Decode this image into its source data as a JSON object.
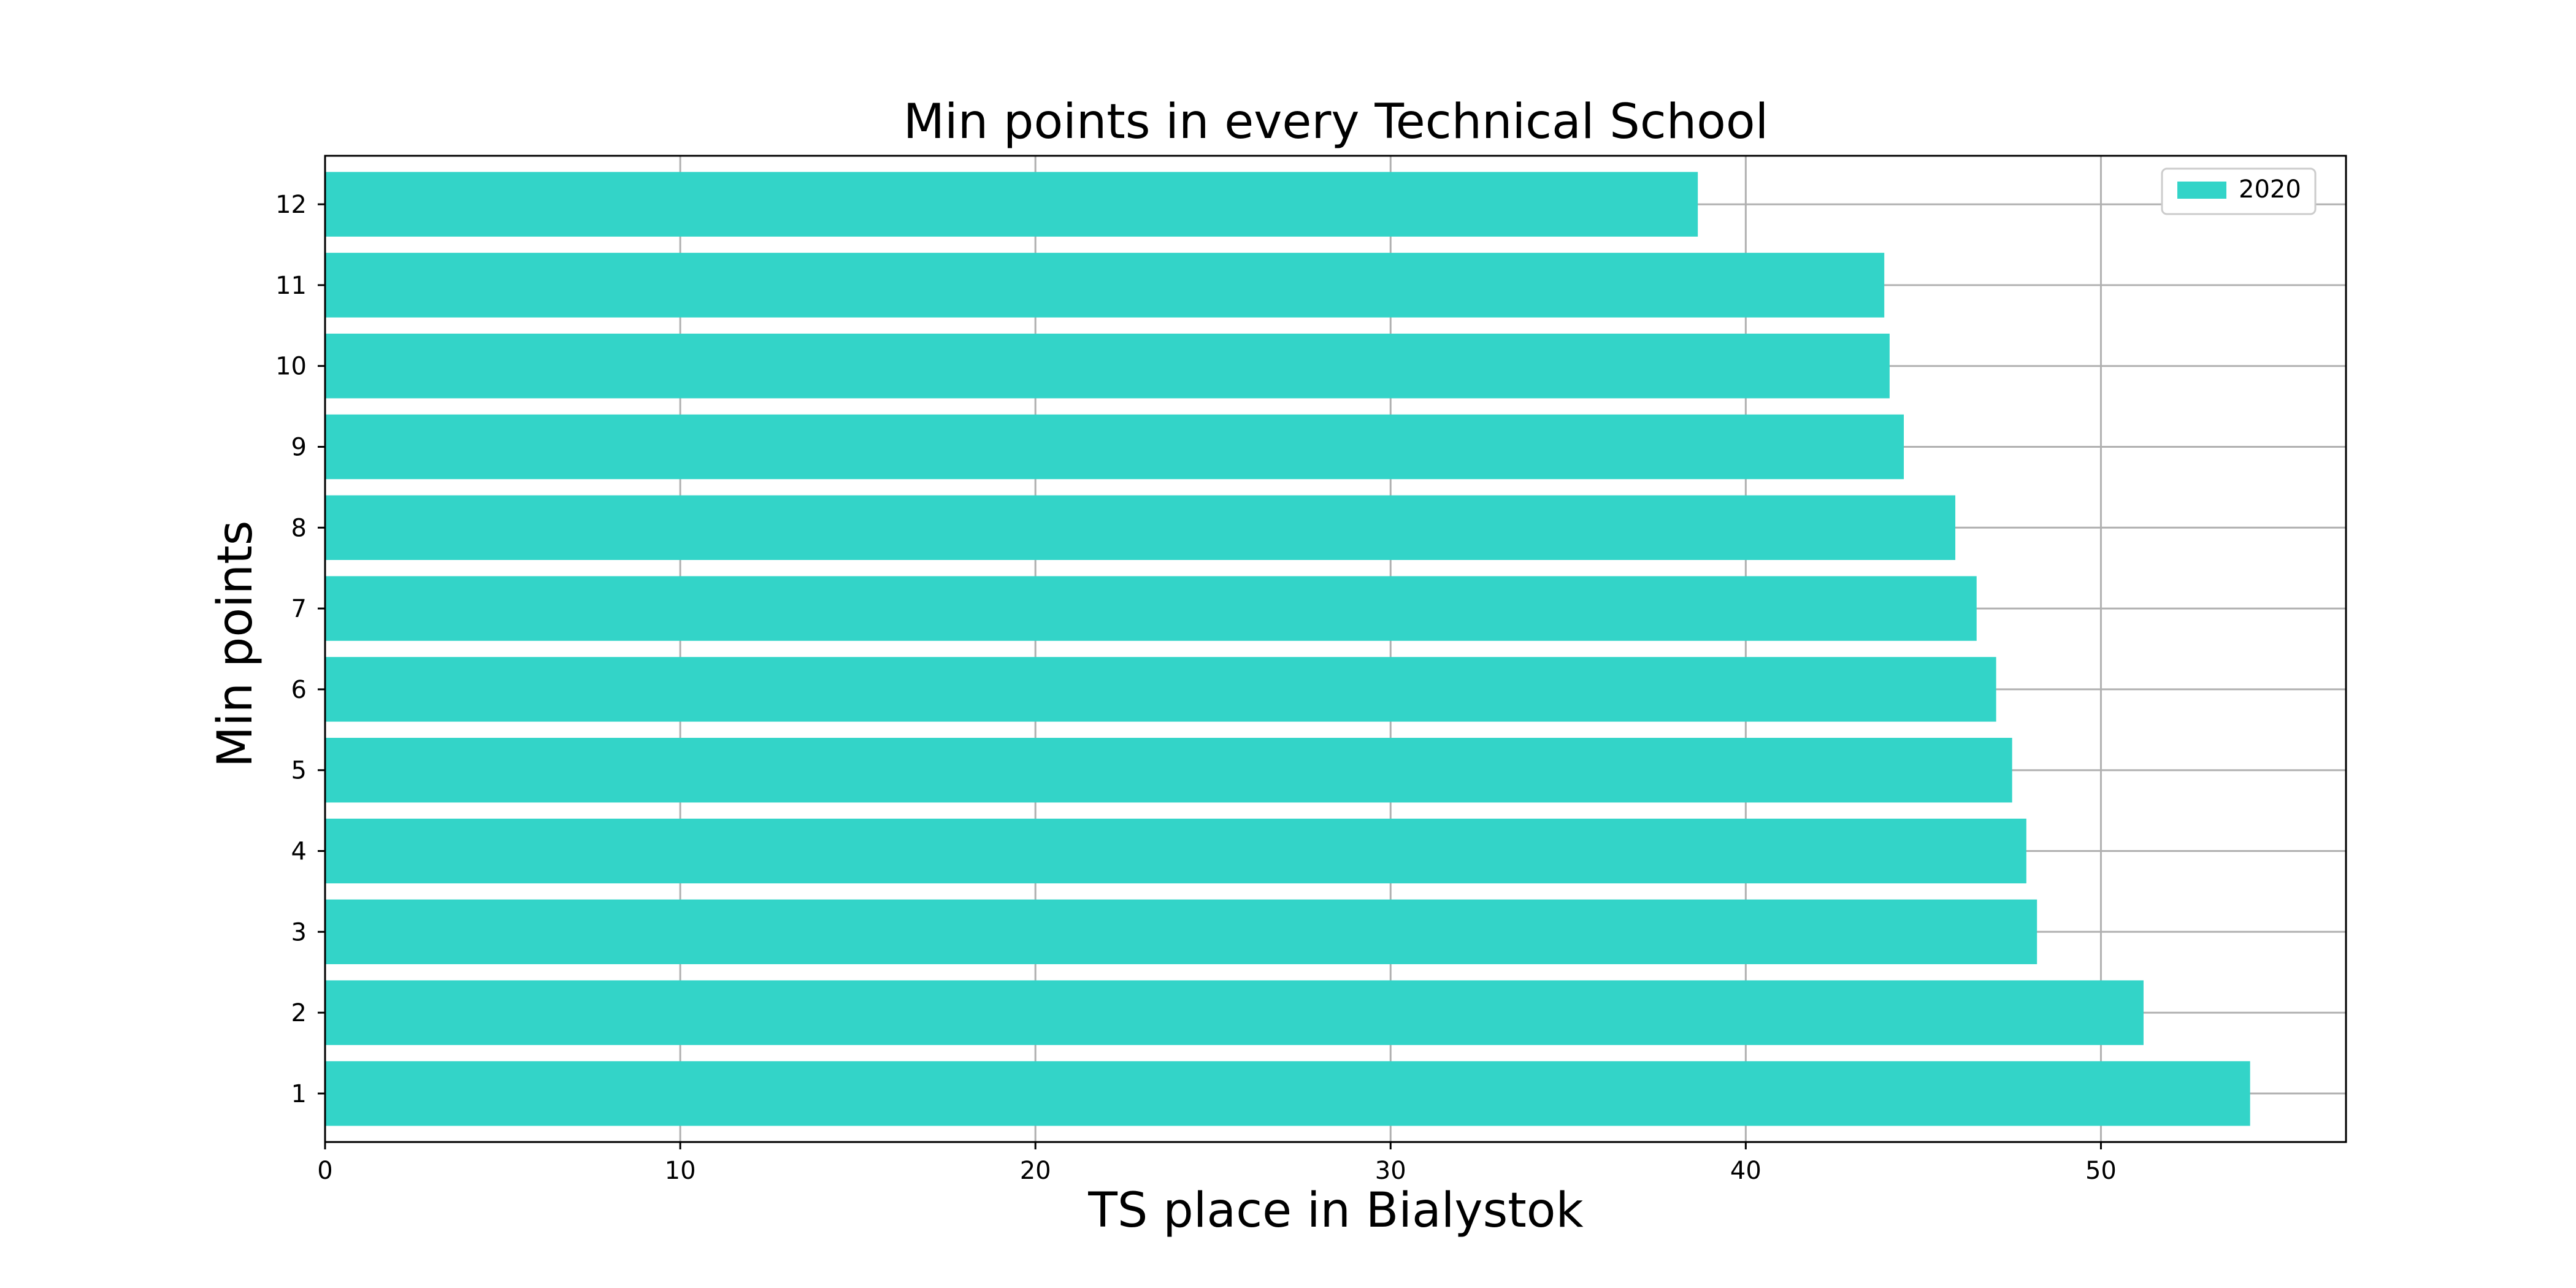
{
  "chart_data": {
    "type": "bar",
    "orientation": "horizontal",
    "title": "Min points in every Technical School",
    "xlabel": "TS place in Bialystok",
    "ylabel": "Min points",
    "categories": [
      "1",
      "2",
      "3",
      "4",
      "5",
      "6",
      "7",
      "8",
      "9",
      "10",
      "11",
      "12"
    ],
    "series": [
      {
        "name": "2020",
        "values": [
          54.2,
          51.2,
          48.2,
          47.9,
          47.5,
          47.05,
          46.5,
          45.9,
          44.45,
          44.05,
          43.9,
          38.65
        ]
      }
    ],
    "xlim": [
      0,
      56.9
    ],
    "xticks": [
      0,
      10,
      20,
      30,
      40,
      50
    ],
    "grid": true,
    "legend_position": "top-right",
    "colors": {
      "bar": "#33d4c8",
      "grid": "#b0b0b0",
      "axis": "#000000"
    }
  }
}
